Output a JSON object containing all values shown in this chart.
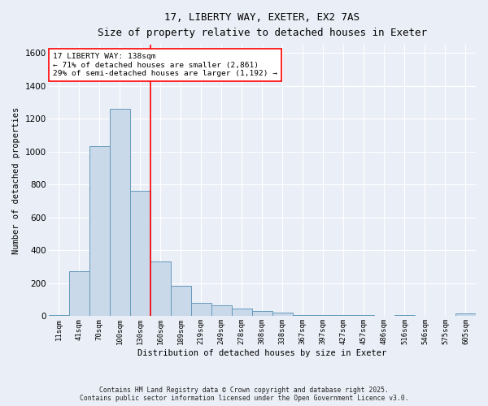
{
  "title_line1": "17, LIBERTY WAY, EXETER, EX2 7AS",
  "title_line2": "Size of property relative to detached houses in Exeter",
  "xlabel": "Distribution of detached houses by size in Exeter",
  "ylabel": "Number of detached properties",
  "bar_labels": [
    "11sqm",
    "41sqm",
    "70sqm",
    "100sqm",
    "130sqm",
    "160sqm",
    "189sqm",
    "219sqm",
    "249sqm",
    "278sqm",
    "308sqm",
    "338sqm",
    "367sqm",
    "397sqm",
    "427sqm",
    "457sqm",
    "486sqm",
    "516sqm",
    "546sqm",
    "575sqm",
    "605sqm"
  ],
  "bar_values": [
    5,
    275,
    1035,
    1260,
    760,
    335,
    185,
    80,
    65,
    48,
    32,
    22,
    5,
    5,
    5,
    5,
    0,
    5,
    0,
    0,
    15
  ],
  "bar_color": "#c9d9ea",
  "bar_edge_color": "#6699bb",
  "vline_index": 4.5,
  "vline_color": "red",
  "annotation_text": "17 LIBERTY WAY: 138sqm\n← 71% of detached houses are smaller (2,861)\n29% of semi-detached houses are larger (1,192) →",
  "annotation_box_facecolor": "white",
  "annotation_box_edgecolor": "red",
  "ylim": [
    0,
    1650
  ],
  "yticks": [
    0,
    200,
    400,
    600,
    800,
    1000,
    1200,
    1400,
    1600
  ],
  "background_color": "#eaeff7",
  "grid_color": "white",
  "footer_line1": "Contains HM Land Registry data © Crown copyright and database right 2025.",
  "footer_line2": "Contains public sector information licensed under the Open Government Licence v3.0."
}
